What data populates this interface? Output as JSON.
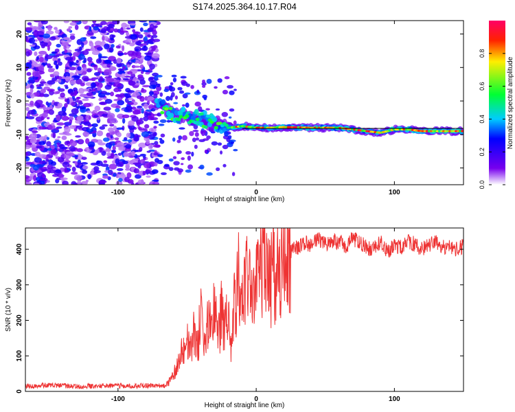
{
  "chart_data": [
    {
      "type": "heatmap",
      "title": "S174.2025.364.10.17.R04",
      "xlabel": "Height of straight line (km)",
      "ylabel": "Frequency (Hz)",
      "xlim": [
        -167,
        150
      ],
      "ylim": [
        -25,
        24
      ],
      "x_ticks": [
        -100,
        0,
        100
      ],
      "y_ticks": [
        -20,
        -10,
        0,
        10,
        20
      ],
      "ridge": [
        {
          "x": -70,
          "y": -1.5
        },
        {
          "x": -60,
          "y": -4
        },
        {
          "x": -50,
          "y": -5
        },
        {
          "x": -40,
          "y": -5.5
        },
        {
          "x": -30,
          "y": -7
        },
        {
          "x": -20,
          "y": -8
        },
        {
          "x": -10,
          "y": -7.5
        },
        {
          "x": 0,
          "y": -8
        },
        {
          "x": 10,
          "y": -8
        },
        {
          "x": 20,
          "y": -7.8
        },
        {
          "x": 40,
          "y": -8
        },
        {
          "x": 60,
          "y": -8
        },
        {
          "x": 70,
          "y": -8.5
        },
        {
          "x": 80,
          "y": -9
        },
        {
          "x": 90,
          "y": -9.5
        },
        {
          "x": 100,
          "y": -8.5
        },
        {
          "x": 110,
          "y": -8.5
        },
        {
          "x": 120,
          "y": -9
        },
        {
          "x": 135,
          "y": -9
        },
        {
          "x": 150,
          "y": -9
        }
      ],
      "guide_line": {
        "x_start": -10,
        "x_end": 150,
        "y": -8.2
      },
      "colorbar": {
        "label": "Normalized spectral amplitude",
        "range": [
          0,
          1
        ],
        "ticks": [
          0.0,
          0.2,
          0.4,
          0.6,
          0.8
        ]
      }
    },
    {
      "type": "line",
      "xlabel": "Height of straight line (km)",
      "ylabel": "SNR (10 * v/v)",
      "xlim": [
        -167,
        150
      ],
      "ylim": [
        0,
        460
      ],
      "x_ticks": [
        -100,
        0,
        100
      ],
      "y_ticks": [
        0,
        100,
        200,
        300,
        400
      ],
      "color": "#ee3333",
      "x": [
        -167,
        -150,
        -130,
        -110,
        -90,
        -75,
        -66,
        -62,
        -58,
        -55,
        -52,
        -50,
        -48,
        -45,
        -42,
        -40,
        -38,
        -35,
        -32,
        -30,
        -28,
        -26,
        -25,
        -22,
        -20,
        -18,
        -16,
        -15,
        -13,
        -12,
        -10,
        -8,
        -6,
        -5,
        -4,
        -2,
        0,
        2,
        4,
        6,
        8,
        10,
        12,
        15,
        18,
        20,
        23,
        25,
        28,
        30,
        35,
        40,
        45,
        50,
        55,
        60,
        65,
        70,
        75,
        80,
        85,
        90,
        95,
        100,
        105,
        110,
        115,
        120,
        125,
        130,
        135,
        140,
        145,
        150
      ],
      "y": [
        15,
        18,
        14,
        16,
        15,
        17,
        15,
        30,
        60,
        95,
        120,
        150,
        110,
        160,
        140,
        220,
        120,
        190,
        170,
        260,
        150,
        200,
        230,
        180,
        260,
        120,
        300,
        240,
        330,
        270,
        230,
        310,
        300,
        260,
        330,
        280,
        300,
        320,
        340,
        330,
        360,
        300,
        330,
        340,
        330,
        360,
        370,
        390,
        410,
        400,
        420,
        410,
        430,
        415,
        425,
        420,
        410,
        430,
        420,
        405,
        400,
        420,
        395,
        410,
        405,
        420,
        415,
        400,
        410,
        420,
        405,
        410,
        400,
        410
      ]
    }
  ]
}
